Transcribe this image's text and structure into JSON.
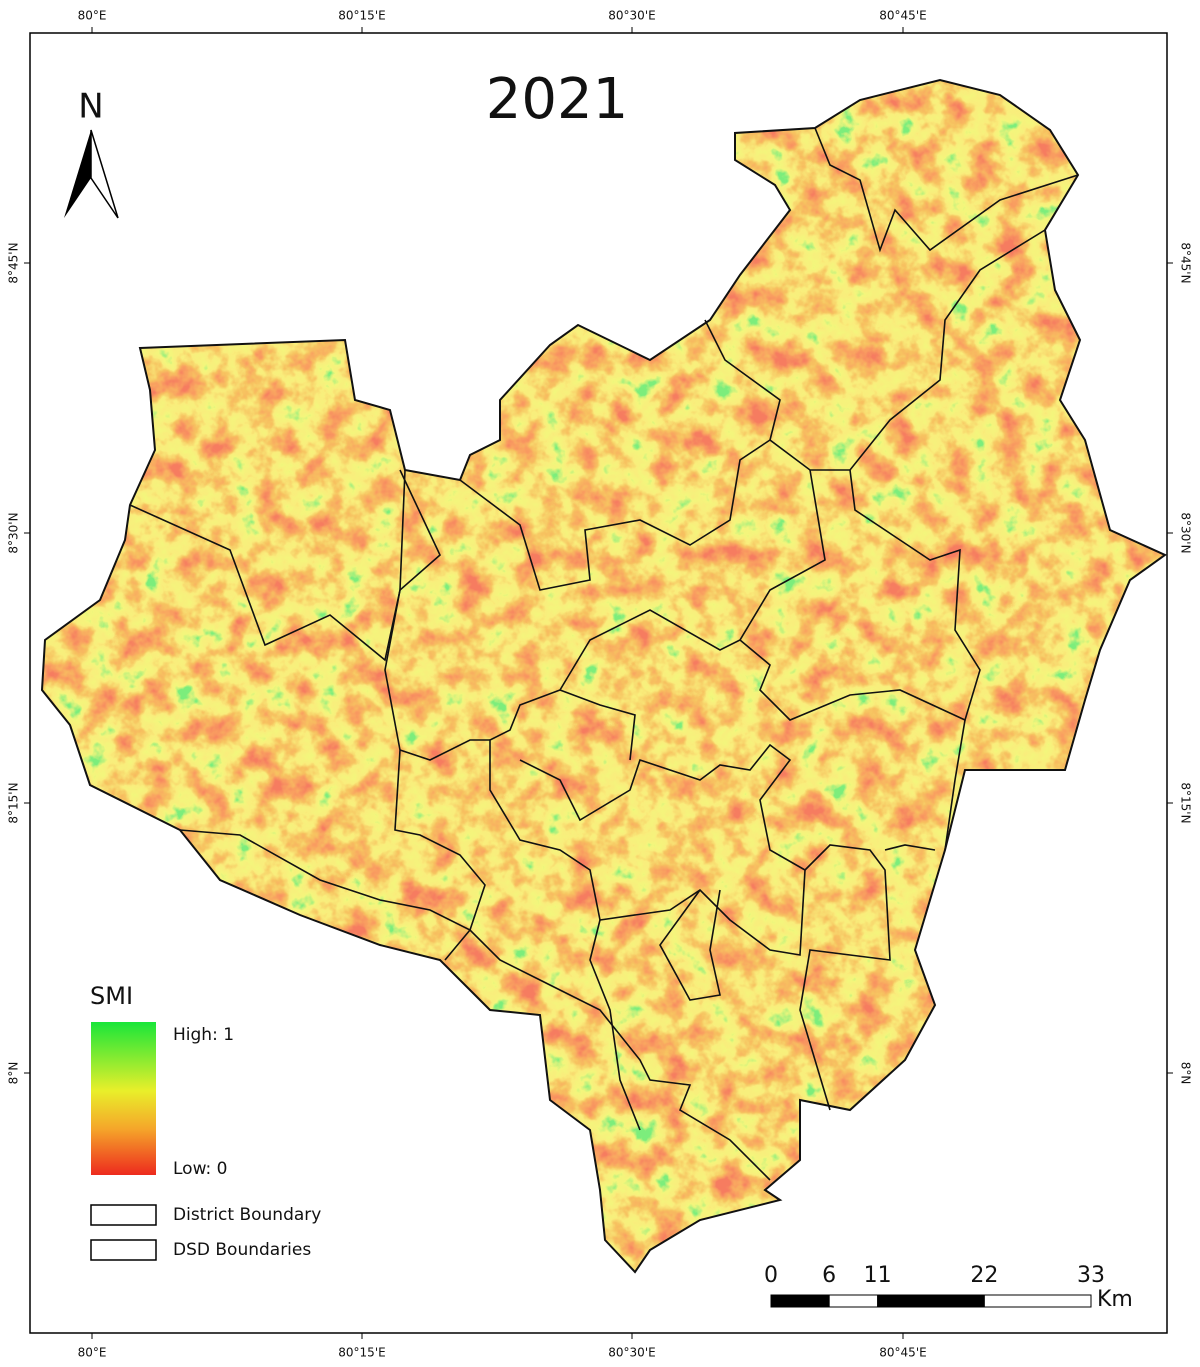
{
  "title": "2021",
  "north_arrow": "N",
  "graticule": {
    "longitudes": [
      "80°E",
      "80°15'E",
      "80°30'E",
      "80°45'E"
    ],
    "latitudes": [
      "8°45'N",
      "8°30'N",
      "8°15'N",
      "8°N"
    ]
  },
  "legend": {
    "title": "SMI",
    "high": "High: 1",
    "low": "Low: 0",
    "items": [
      "District Boundary",
      "DSD Boundaries"
    ]
  },
  "scale_bar": {
    "ticks": [
      "0",
      "6",
      "11",
      "22",
      "33"
    ],
    "unit": "Km"
  }
}
